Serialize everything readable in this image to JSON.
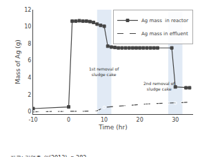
{
  "chart_data": {
    "type": "line",
    "xlabel": "Time (hr)",
    "ylabel": "Mass of Ag (g)",
    "series": [
      {
        "name": "Ag mass  in reactor",
        "color": "#444444",
        "line_style": "solid",
        "marker": "square",
        "x": [
          -10,
          0,
          1,
          2,
          3,
          4,
          5,
          6,
          7,
          8,
          9,
          10,
          11,
          12,
          13,
          14,
          15,
          16,
          17,
          18,
          19,
          20,
          21,
          22,
          23,
          24,
          25,
          29,
          30,
          33,
          34
        ],
        "values": [
          0.35,
          0.55,
          10.65,
          10.65,
          10.7,
          10.65,
          10.65,
          10.6,
          10.5,
          10.3,
          10.15,
          10.05,
          7.7,
          7.6,
          7.55,
          7.5,
          7.5,
          7.5,
          7.5,
          7.5,
          7.5,
          7.5,
          7.5,
          7.5,
          7.5,
          7.5,
          7.5,
          7.5,
          2.9,
          2.8,
          2.8
        ]
      },
      {
        "name": "Ag mass in effluent",
        "color": "#444444",
        "line_style": "dashed",
        "marker": "circle-open",
        "x": [
          -10,
          -9,
          -8,
          -7,
          -6,
          -5,
          -4,
          -3,
          -2,
          -1,
          0,
          2,
          4,
          6,
          8,
          10,
          13,
          16,
          18,
          20,
          22,
          25,
          28,
          30,
          32,
          34
        ],
        "values": [
          -0.05,
          0.0,
          0.0,
          0.0,
          0.0,
          0.0,
          0.0,
          0.0,
          0.0,
          0.0,
          0.0,
          0.0,
          0.0,
          0.05,
          0.1,
          0.5,
          0.6,
          0.7,
          0.75,
          0.85,
          0.9,
          0.95,
          1.0,
          1.0,
          1.05,
          1.1
        ]
      }
    ],
    "shaded_regions": [
      {
        "x": [
          8,
          12
        ],
        "color": "#c8d8ec"
      },
      {
        "x": [
          28,
          32
        ],
        "color": "#c8d8ec"
      }
    ],
    "annotations": [
      {
        "text": "1st removal of\nsludge cake",
        "x": 10.0,
        "y": 5.5
      },
      {
        "text": "2nd removal of\nsludge cake",
        "x": 25.5,
        "y": 3.8
      }
    ],
    "caption": "자료: 김명훈 외(2013). p.382.",
    "xlim": [
      -10,
      35
    ],
    "ylim": [
      -0.3,
      12
    ],
    "xticks": [
      -10,
      0,
      10,
      20,
      30
    ],
    "yticks": [
      0,
      2,
      4,
      6,
      8,
      10,
      12
    ],
    "grid": false,
    "legend": "upper right"
  }
}
